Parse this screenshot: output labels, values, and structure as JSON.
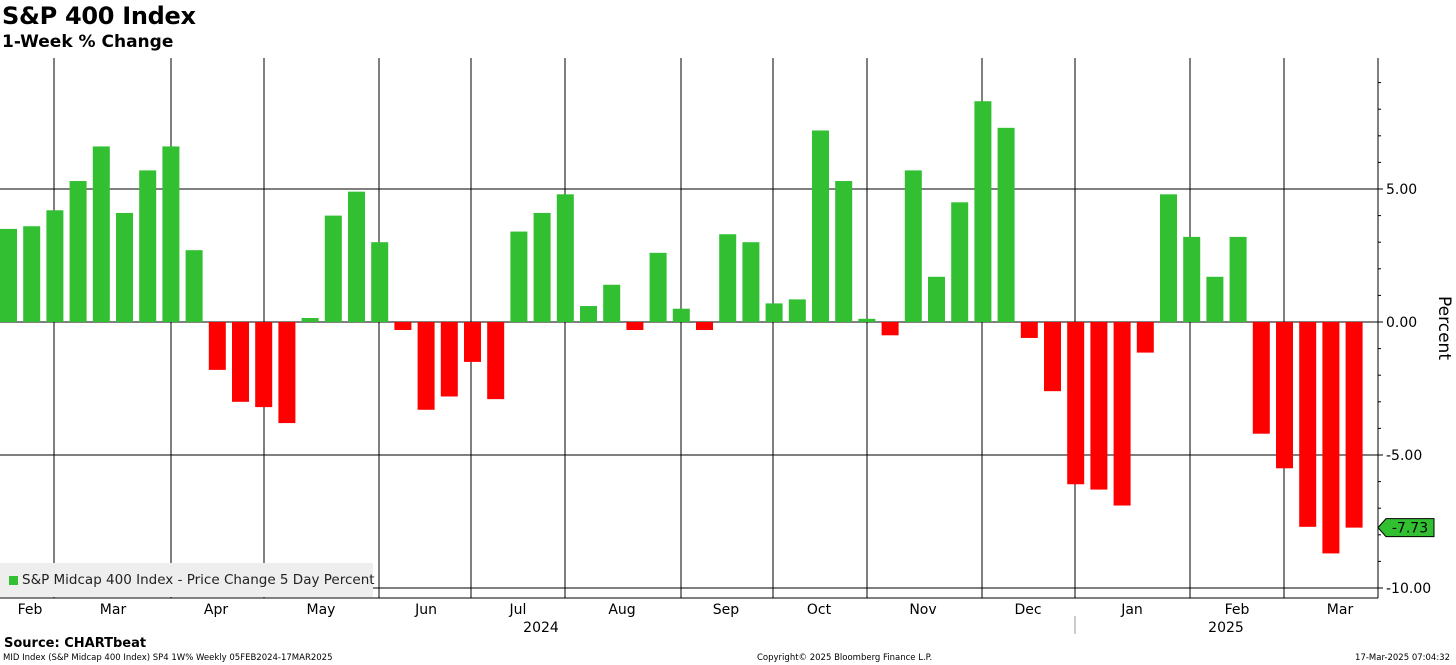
{
  "title": "S&P 400 Index",
  "subtitle": "1-Week % Change",
  "legend_label": "S&P Midcap 400 Index - Price Change 5 Day Percent",
  "ylabel": "Percent",
  "source": "Source: CHARTbeat",
  "footer_left": "MID Index (S&P Midcap 400 Index) SP4 1W% Weekly 05FEB2024-17MAR2025",
  "footer_center": "Copyright© 2025 Bloomberg Finance L.P.",
  "footer_right": "17-Mar-2025 07:04:32",
  "last_value_label": "-7.73",
  "colors": {
    "positive": "#32c032",
    "negative": "#ff0000",
    "grid": "#000000"
  },
  "chart_data": {
    "type": "bar",
    "ylim": [
      -10,
      10
    ],
    "yticks": [
      5,
      0,
      -5,
      -10
    ],
    "ytick_labels": [
      "5.00",
      "0.00",
      "-5.00",
      "-10.00"
    ],
    "grid": true,
    "legend_placement": "bottom-left",
    "x_month_labels": [
      "Feb",
      "Mar",
      "Apr",
      "May",
      "Jun",
      "Jul",
      "Aug",
      "Sep",
      "Oct",
      "Nov",
      "Dec",
      "Jan",
      "Feb",
      "Mar"
    ],
    "x_year_labels": [
      "2024",
      "2025"
    ],
    "week_start": "2024-02-05",
    "values": [
      3.5,
      3.6,
      4.2,
      5.3,
      6.6,
      4.1,
      5.7,
      6.6,
      2.7,
      -1.8,
      -3.0,
      -3.2,
      -3.8,
      0.15,
      4.0,
      4.9,
      3.0,
      -0.3,
      -3.3,
      -2.8,
      -1.5,
      -2.9,
      3.4,
      4.1,
      4.8,
      0.6,
      1.4,
      -0.3,
      2.6,
      0.5,
      -0.3,
      3.3,
      3.0,
      0.7,
      0.85,
      7.2,
      5.3,
      0.12,
      -0.5,
      5.7,
      1.7,
      4.5,
      8.3,
      7.3,
      -0.6,
      -2.6,
      -6.1,
      -6.3,
      -6.9,
      -1.15,
      4.8,
      3.2,
      1.7,
      3.2,
      -4.2,
      -5.5,
      -7.7,
      -8.7,
      -7.73
    ]
  }
}
